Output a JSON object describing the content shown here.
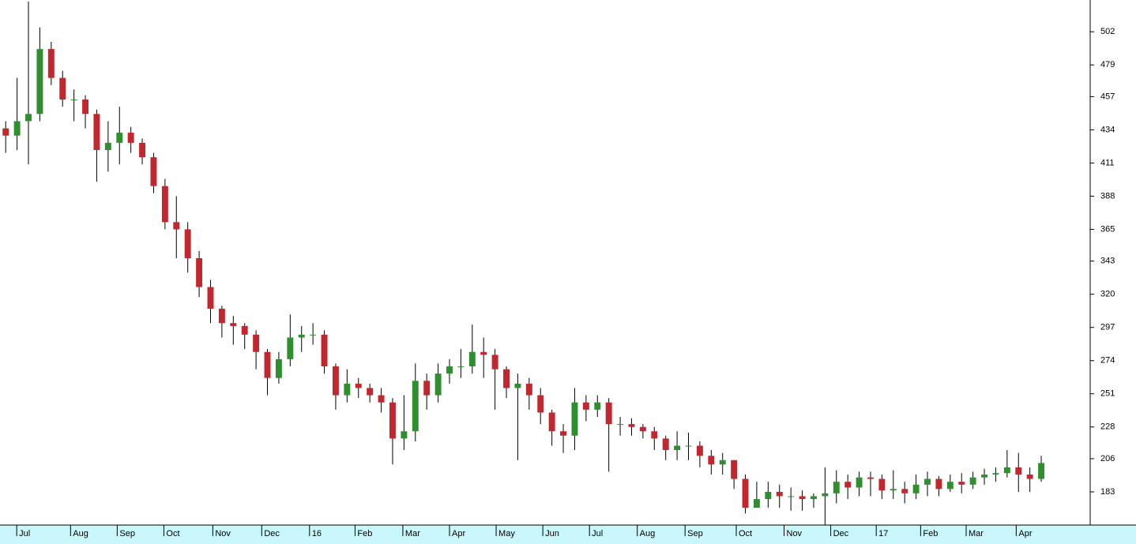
{
  "chart_data": {
    "type": "candlestick",
    "open": [
      435,
      430,
      440,
      445,
      490,
      470,
      455,
      455,
      445,
      420,
      425,
      432,
      425,
      415,
      395,
      370,
      365,
      345,
      325,
      310,
      300,
      298,
      292,
      280,
      262,
      275,
      290,
      292,
      292,
      270,
      250,
      258,
      255,
      250,
      245,
      220,
      225,
      260,
      250,
      265,
      270,
      270,
      280,
      278,
      268,
      255,
      258,
      250,
      238,
      225,
      222,
      245,
      240,
      245,
      230,
      230,
      228,
      225,
      220,
      212,
      215,
      215,
      208,
      202,
      205,
      192,
      172,
      178,
      183,
      180,
      180,
      178,
      180,
      182,
      190,
      186,
      193,
      192,
      184,
      185,
      182,
      188,
      192,
      185,
      190,
      188,
      193,
      195,
      196,
      200,
      195,
      192
    ],
    "high": [
      440,
      470,
      523,
      505,
      495,
      475,
      462,
      458,
      448,
      440,
      450,
      436,
      428,
      418,
      400,
      388,
      370,
      350,
      330,
      312,
      305,
      300,
      295,
      282,
      280,
      306,
      298,
      300,
      295,
      272,
      268,
      262,
      258,
      255,
      248,
      250,
      272,
      265,
      272,
      275,
      282,
      299,
      290,
      282,
      270,
      265,
      262,
      255,
      240,
      230,
      255,
      250,
      250,
      248,
      235,
      234,
      230,
      228,
      222,
      225,
      224,
      218,
      212,
      210,
      205,
      195,
      190,
      190,
      188,
      186,
      184,
      182,
      200,
      198,
      195,
      197,
      197,
      195,
      198,
      190,
      195,
      197,
      194,
      195,
      196,
      197,
      199,
      200,
      212,
      210,
      200,
      208
    ],
    "low": [
      418,
      420,
      410,
      440,
      465,
      450,
      440,
      435,
      398,
      405,
      410,
      418,
      410,
      390,
      365,
      345,
      335,
      318,
      300,
      290,
      285,
      282,
      268,
      250,
      258,
      270,
      280,
      285,
      265,
      240,
      245,
      248,
      245,
      238,
      202,
      212,
      218,
      240,
      245,
      258,
      262,
      265,
      262,
      240,
      248,
      205,
      240,
      230,
      215,
      210,
      212,
      232,
      235,
      197,
      222,
      222,
      220,
      212,
      205,
      205,
      205,
      200,
      195,
      195,
      185,
      168,
      172,
      172,
      172,
      170,
      170,
      172,
      160,
      175,
      178,
      180,
      180,
      178,
      178,
      175,
      178,
      180,
      180,
      183,
      182,
      185,
      188,
      190,
      193,
      183,
      183,
      190
    ],
    "close": [
      430,
      440,
      445,
      490,
      470,
      455,
      455,
      445,
      420,
      425,
      432,
      425,
      415,
      395,
      370,
      365,
      345,
      325,
      310,
      300,
      298,
      292,
      280,
      262,
      275,
      290,
      292,
      292,
      270,
      250,
      258,
      255,
      250,
      245,
      220,
      225,
      260,
      250,
      265,
      270,
      270,
      280,
      278,
      268,
      255,
      258,
      250,
      238,
      225,
      222,
      245,
      240,
      245,
      230,
      230,
      228,
      225,
      220,
      212,
      215,
      215,
      208,
      202,
      205,
      192,
      172,
      178,
      183,
      180,
      180,
      178,
      180,
      182,
      190,
      186,
      193,
      192,
      184,
      185,
      182,
      188,
      192,
      185,
      190,
      188,
      193,
      195,
      196,
      200,
      195,
      192,
      203
    ],
    "up_color": "#2f8f2f",
    "down_color": "#c1272d",
    "wick_color": "#000000",
    "ylim": [
      160,
      524
    ],
    "yticks": [
      183,
      206,
      228,
      251,
      274,
      297,
      320,
      343,
      365,
      388,
      411,
      434,
      457,
      479,
      502
    ],
    "xlim": [
      -0.5,
      95.3
    ],
    "xticks": [
      {
        "value": 0.97,
        "label": "Jul"
      },
      {
        "value": 5.7,
        "label": "Aug"
      },
      {
        "value": 9.8,
        "label": "Sep"
      },
      {
        "value": 13.9,
        "label": "Oct"
      },
      {
        "value": 18.2,
        "label": "Nov"
      },
      {
        "value": 22.5,
        "label": "Dec"
      },
      {
        "value": 26.7,
        "label": "16"
      },
      {
        "value": 30.7,
        "label": "Feb"
      },
      {
        "value": 34.9,
        "label": "Mar"
      },
      {
        "value": 39.0,
        "label": "Apr"
      },
      {
        "value": 43.1,
        "label": "May"
      },
      {
        "value": 47.2,
        "label": "Jun"
      },
      {
        "value": 51.3,
        "label": "Jul"
      },
      {
        "value": 55.5,
        "label": "Aug"
      },
      {
        "value": 59.7,
        "label": "Sep"
      },
      {
        "value": 64.2,
        "label": "Oct"
      },
      {
        "value": 68.4,
        "label": "Nov"
      },
      {
        "value": 72.5,
        "label": "Dec"
      },
      {
        "value": 76.5,
        "label": "17"
      },
      {
        "value": 80.4,
        "label": "Feb"
      },
      {
        "value": 84.4,
        "label": "Mar"
      },
      {
        "value": 88.8,
        "label": "Apr"
      }
    ]
  }
}
